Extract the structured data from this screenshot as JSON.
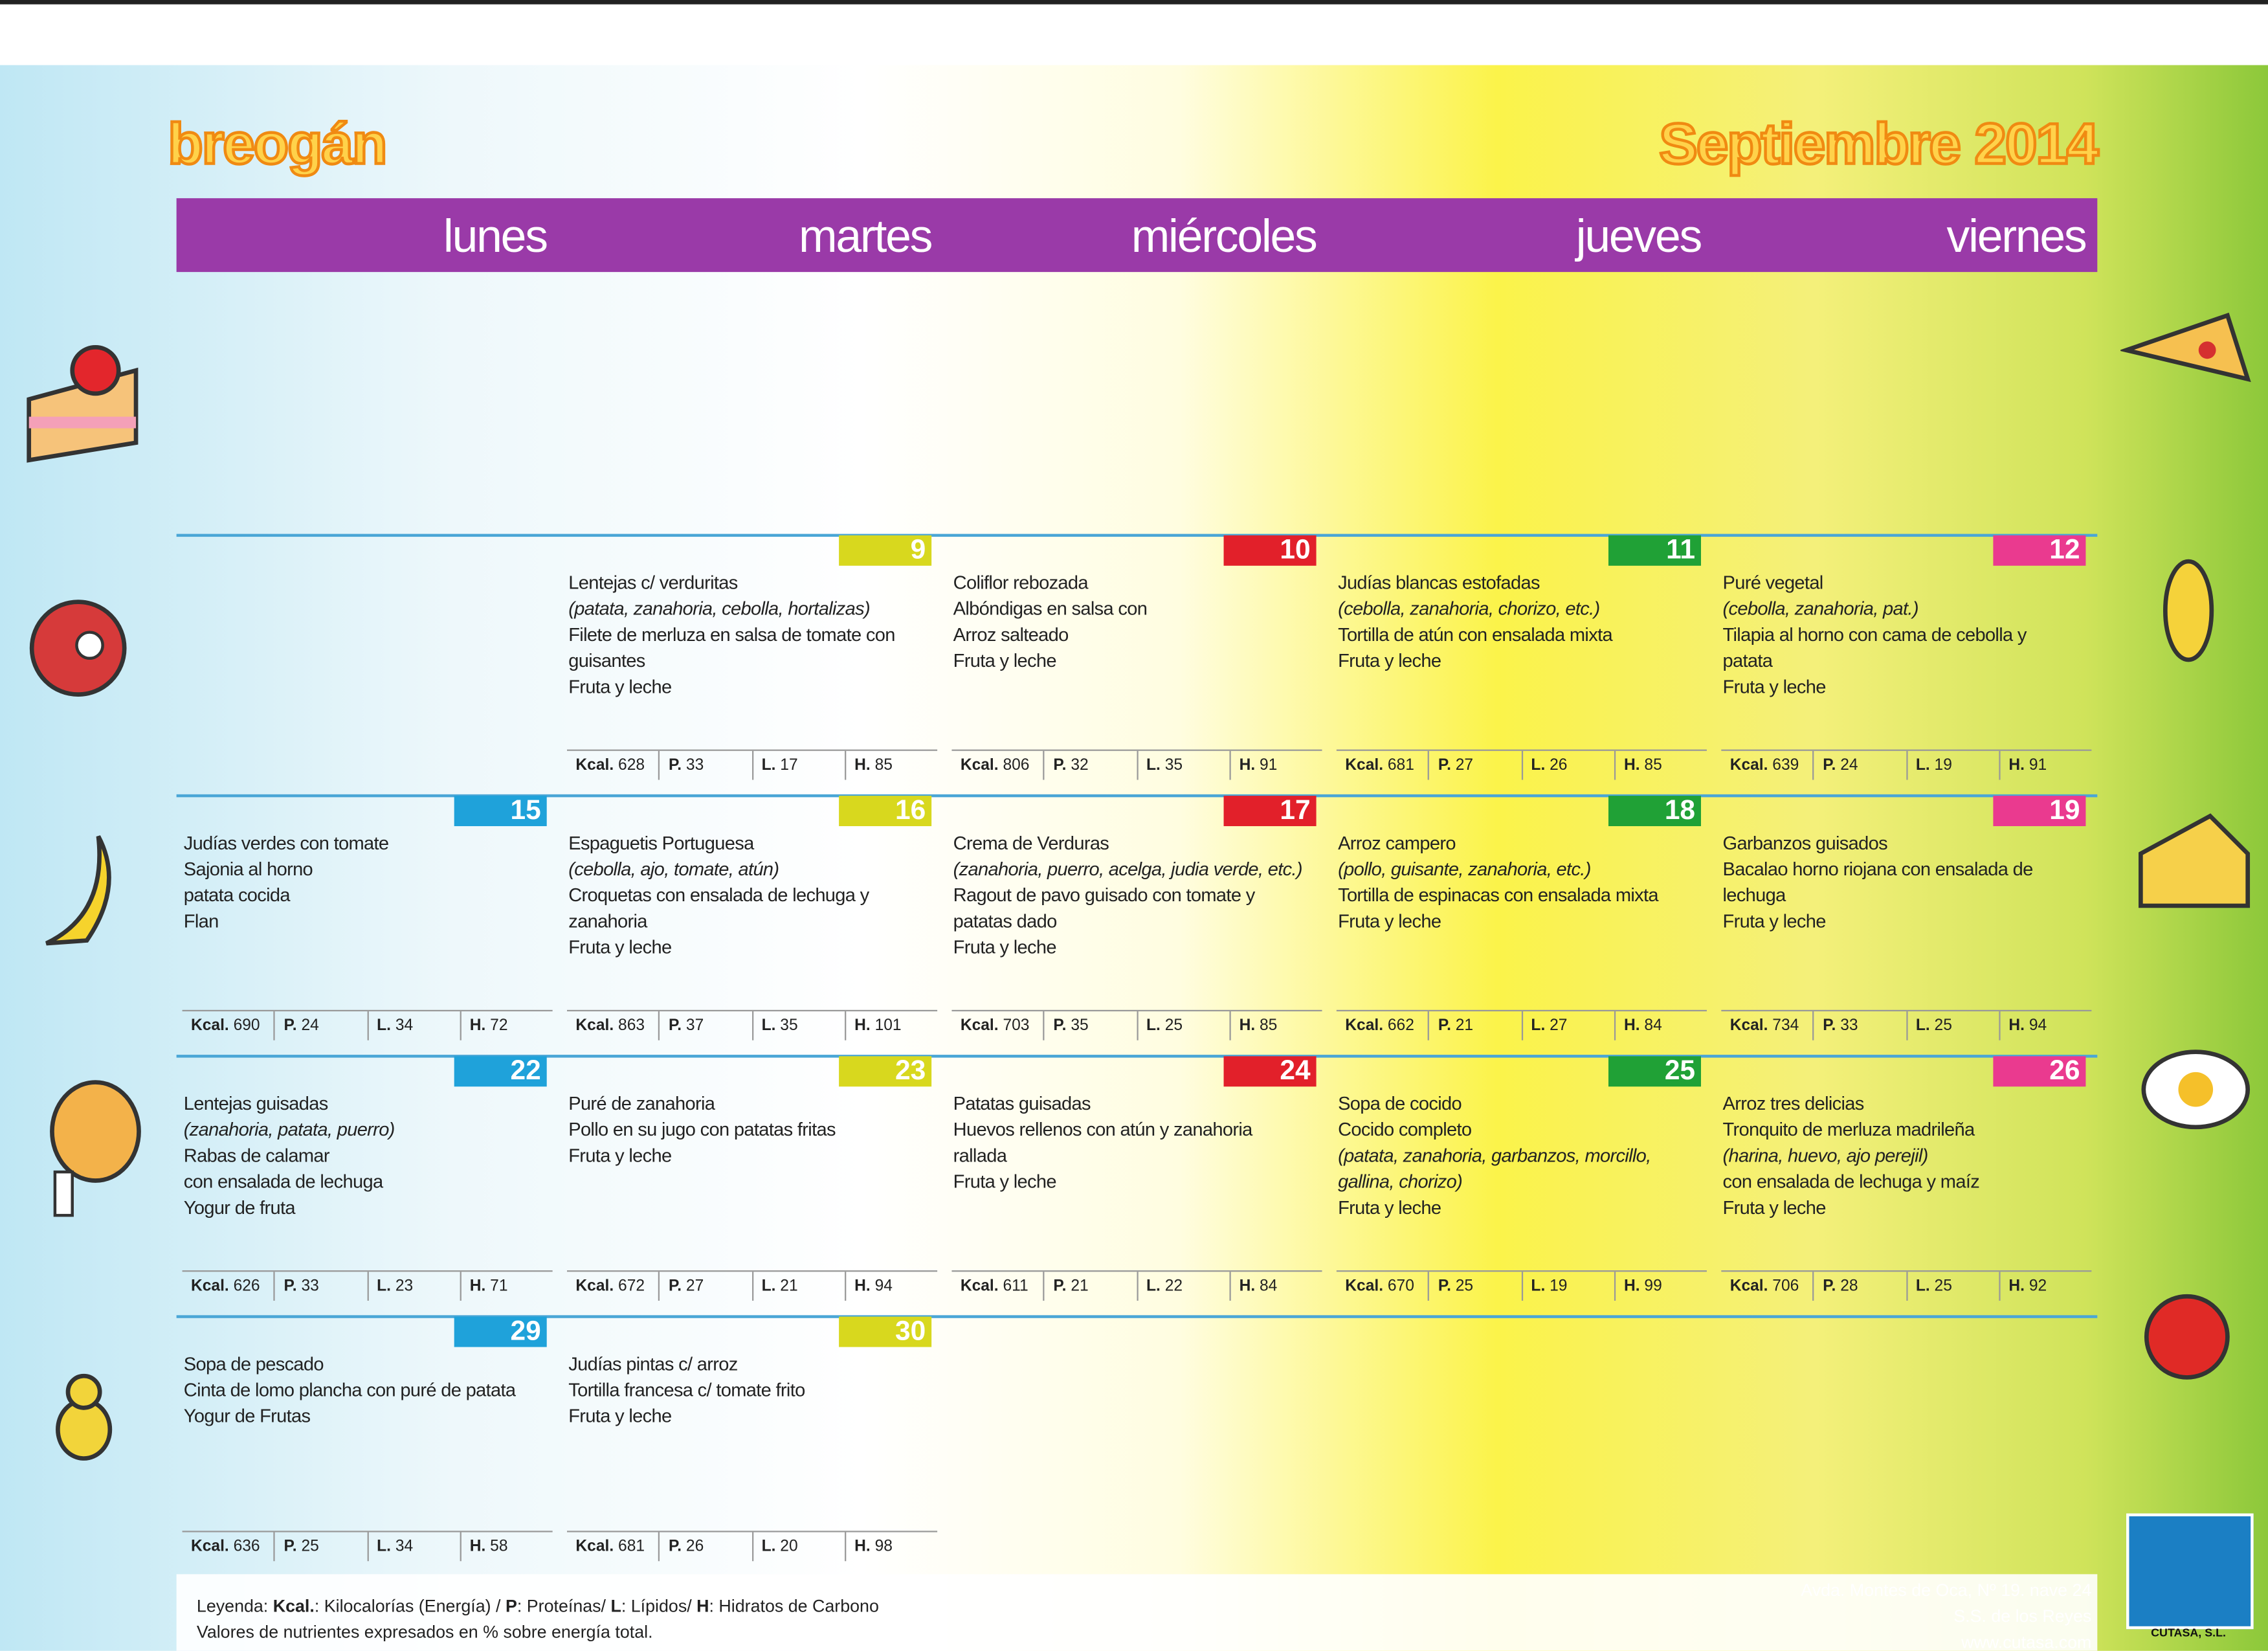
{
  "header": {
    "brand": "breogán",
    "month": "Septiembre 2014"
  },
  "days": [
    "lunes",
    "martes",
    "miércoles",
    "jueves",
    "viernes"
  ],
  "nutrient_labels": [
    "Kcal.",
    "P.",
    "L.",
    "H."
  ],
  "weeks": [
    [
      null,
      {
        "day": 9,
        "lines": [
          "Lentejas c/ verduritas",
          {
            "text": "(patata, zanahoria, cebolla, hortalizas)",
            "italic": true
          },
          "Filete de merluza en salsa de tomate con guisantes",
          "Fruta y leche"
        ],
        "nutrients": [
          628,
          33,
          17,
          85
        ]
      },
      {
        "day": 10,
        "lines": [
          "Coliflor rebozada",
          "Albóndigas en salsa con",
          "Arroz salteado",
          "Fruta y leche"
        ],
        "nutrients": [
          806,
          32,
          35,
          91
        ]
      },
      {
        "day": 11,
        "lines": [
          "Judías blancas estofadas",
          {
            "text": "(cebolla, zanahoria, chorizo, etc.)",
            "italic": true
          },
          "Tortilla de atún con ensalada mixta",
          "Fruta y leche"
        ],
        "nutrients": [
          681,
          27,
          26,
          85
        ]
      },
      {
        "day": 12,
        "lines": [
          "Puré vegetal",
          {
            "text": "(cebolla, zanahoria, pat.)",
            "italic": true
          },
          "Tilapia al horno con cama de cebolla y patata",
          "Fruta y leche"
        ],
        "nutrients": [
          639,
          24,
          19,
          91
        ]
      }
    ],
    [
      {
        "day": 15,
        "lines": [
          "Judías verdes con tomate",
          "Sajonia al horno",
          "patata cocida",
          "Flan"
        ],
        "nutrients": [
          690,
          24,
          34,
          72
        ]
      },
      {
        "day": 16,
        "lines": [
          "Espaguetis Portuguesa",
          {
            "text": "(cebolla, ajo, tomate, atún)",
            "italic": true
          },
          "Croquetas con ensalada de lechuga y zanahoria",
          "Fruta y leche"
        ],
        "nutrients": [
          863,
          37,
          35,
          101
        ]
      },
      {
        "day": 17,
        "lines": [
          "Crema de Verduras",
          {
            "text": "(zanahoria, puerro, acelga, judia verde, etc.)",
            "italic": true
          },
          "Ragout de pavo guisado con tomate y patatas dado",
          "Fruta y leche"
        ],
        "nutrients": [
          703,
          35,
          25,
          85
        ]
      },
      {
        "day": 18,
        "lines": [
          "Arroz campero",
          {
            "text": "(pollo, guisante, zanahoria, etc.)",
            "italic": true
          },
          "Tortilla de espinacas con ensalada mixta",
          "Fruta y leche"
        ],
        "nutrients": [
          662,
          21,
          27,
          84
        ]
      },
      {
        "day": 19,
        "lines": [
          "Garbanzos guisados",
          "Bacalao horno riojana con ensalada de lechuga",
          "Fruta y leche"
        ],
        "nutrients": [
          734,
          33,
          25,
          94
        ]
      }
    ],
    [
      {
        "day": 22,
        "lines": [
          "Lentejas guisadas",
          {
            "text": "(zanahoria, patata, puerro)",
            "italic": true
          },
          "Rabas de calamar",
          "con ensalada de lechuga",
          "Yogur de fruta"
        ],
        "nutrients": [
          626,
          33,
          23,
          71
        ]
      },
      {
        "day": 23,
        "lines": [
          "Puré de zanahoria",
          "Pollo en su jugo con patatas fritas",
          "Fruta y leche"
        ],
        "nutrients": [
          672,
          27,
          21,
          94
        ]
      },
      {
        "day": 24,
        "lines": [
          "Patatas guisadas",
          "Huevos rellenos con atún y zanahoria rallada",
          "Fruta y leche"
        ],
        "nutrients": [
          611,
          21,
          22,
          84
        ]
      },
      {
        "day": 25,
        "lines": [
          "Sopa de cocido",
          "Cocido completo",
          {
            "text": "(patata, zanahoria, garbanzos, morcillo, gallina, chorizo)",
            "italic": true
          },
          "Fruta y leche"
        ],
        "nutrients": [
          670,
          25,
          19,
          99
        ]
      },
      {
        "day": 26,
        "lines": [
          "Arroz tres delicias",
          "Tronquito de merluza madrileña",
          {
            "text": "(harina, huevo, ajo perejil)",
            "italic": true
          },
          "con ensalada de lechuga y maíz",
          "Fruta y leche"
        ],
        "nutrients": [
          706,
          28,
          25,
          92
        ]
      }
    ],
    [
      {
        "day": 29,
        "lines": [
          "Sopa de pescado",
          "Cinta de lomo plancha con puré de patata",
          "Yogur de Frutas"
        ],
        "nutrients": [
          636,
          25,
          34,
          58
        ]
      },
      {
        "day": 30,
        "lines": [
          "Judías pintas c/ arroz",
          "Tortilla francesa c/ tomate frito",
          "Fruta y leche"
        ],
        "nutrients": [
          681,
          26,
          20,
          98
        ]
      },
      null,
      null,
      null
    ]
  ],
  "footer": {
    "legend": [
      {
        "text": "Leyenda: ",
        "bold": false
      },
      {
        "text": "Kcal.",
        "bold": true
      },
      {
        "text": ": Kilocalorías (Energía) / ",
        "bold": false
      },
      {
        "text": "P",
        "bold": true
      },
      {
        "text": ": Proteínas/ ",
        "bold": false
      },
      {
        "text": "L",
        "bold": true
      },
      {
        "text": ": Lípidos/ ",
        "bold": false
      },
      {
        "text": "H",
        "bold": true
      },
      {
        "text": ": Hidratos de Carbono",
        "bold": false
      }
    ],
    "note": "Valores de nutrientes expresados en % sobre energía total.",
    "address": [
      "Avda. Montes de Oca, Nº 19. nave 24",
      "S.S. de los Reyes",
      "www.cutasa.com"
    ],
    "company": "CUTASA, S.L."
  }
}
